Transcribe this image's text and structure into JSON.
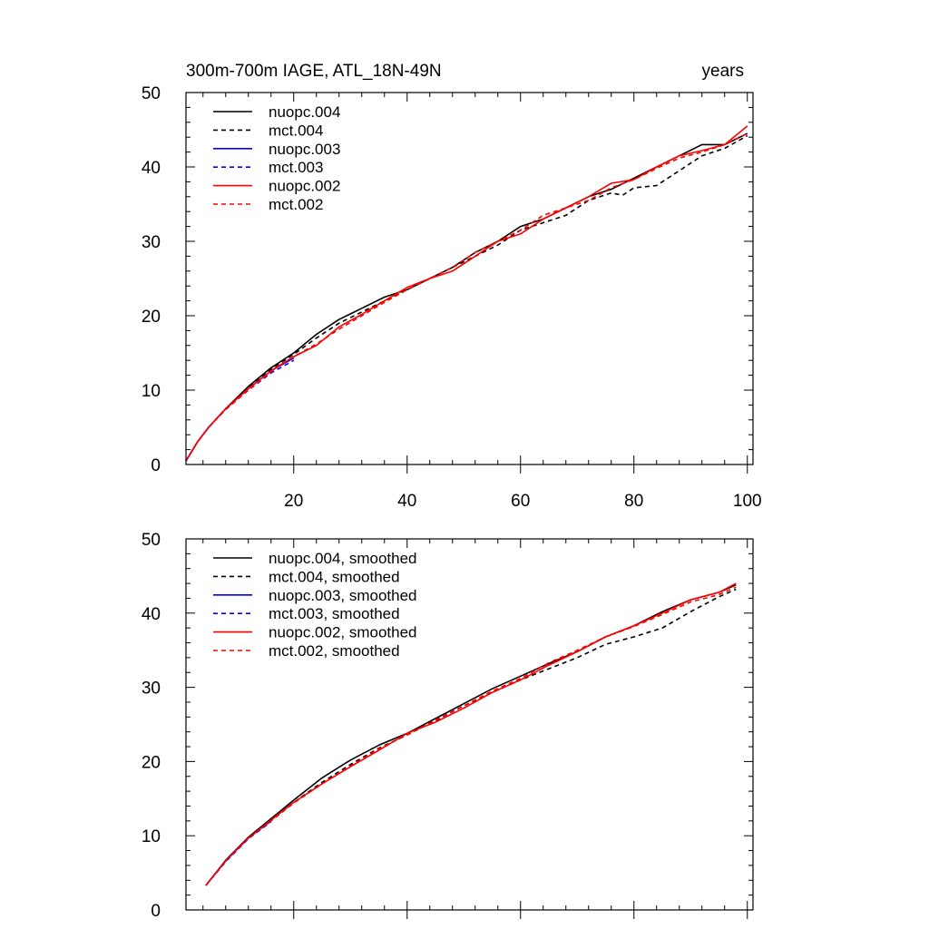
{
  "chart_data": [
    {
      "type": "line",
      "title_left": "300m-700m IAGE, ATL_18N-49N",
      "title_right": "years",
      "xlim": [
        1,
        101
      ],
      "ylim": [
        0,
        50
      ],
      "x_ticks": [
        20,
        40,
        60,
        80,
        100
      ],
      "y_ticks": [
        0,
        10,
        20,
        30,
        40,
        50
      ],
      "legend_position": "top-left",
      "series": [
        {
          "name": "nuopc.004",
          "color": "#000000",
          "dash": "solid",
          "x": [
            1,
            3,
            5,
            8,
            12,
            16,
            20,
            24,
            28,
            32,
            36,
            40,
            44,
            48,
            52,
            56,
            60,
            64,
            68,
            72,
            76,
            80,
            84,
            88,
            92,
            96,
            100
          ],
          "y": [
            0.5,
            3,
            5,
            7.5,
            10.5,
            13,
            15,
            17.5,
            19.5,
            21,
            22.5,
            23.5,
            25,
            26.5,
            28.5,
            30,
            32,
            33,
            34.5,
            36,
            37,
            38.5,
            40,
            41.5,
            43,
            43,
            44.5
          ]
        },
        {
          "name": "mct.004",
          "color": "#000000",
          "dash": "dashed",
          "x": [
            1,
            3,
            5,
            8,
            12,
            16,
            20,
            24,
            28,
            32,
            36,
            40,
            44,
            48,
            52,
            56,
            60,
            64,
            68,
            72,
            76,
            78,
            80,
            84,
            88,
            92,
            96,
            100
          ],
          "y": [
            0.5,
            3,
            5,
            7.5,
            10.3,
            12.8,
            14.8,
            17,
            19,
            20.5,
            22,
            23.5,
            25,
            26.5,
            28,
            29.5,
            31.5,
            32.5,
            33.5,
            35.5,
            36.5,
            36.2,
            37.2,
            37.5,
            39.5,
            41.5,
            42.5,
            44.2
          ]
        },
        {
          "name": "nuopc.003",
          "color": "#0000ff",
          "dash": "solid",
          "x": [
            1,
            3,
            5,
            8,
            12,
            16,
            20
          ],
          "y": [
            0.5,
            3,
            5,
            7.5,
            10.2,
            12.6,
            14.3
          ]
        },
        {
          "name": "mct.003",
          "color": "#0000ff",
          "dash": "dashed",
          "x": [
            1,
            3,
            5,
            8,
            12,
            16,
            20
          ],
          "y": [
            0.5,
            3,
            5,
            7.4,
            10,
            12.3,
            14
          ]
        },
        {
          "name": "nuopc.002",
          "color": "#ff0000",
          "dash": "solid",
          "x": [
            1,
            3,
            5,
            8,
            12,
            16,
            20,
            24,
            28,
            32,
            36,
            40,
            44,
            48,
            52,
            56,
            60,
            64,
            68,
            72,
            76,
            80,
            84,
            88,
            92,
            96,
            100
          ],
          "y": [
            0.5,
            3,
            5,
            7.5,
            10.2,
            12.6,
            14.5,
            16,
            18.5,
            20.2,
            22,
            23.8,
            25,
            26,
            28,
            30,
            31,
            33,
            34.5,
            36,
            37.8,
            38.3,
            40,
            41.5,
            42.2,
            43,
            45.5
          ]
        },
        {
          "name": "mct.002",
          "color": "#ff0000",
          "dash": "dashed",
          "x": [
            1,
            3,
            5,
            8,
            12,
            16,
            20,
            24,
            28,
            32,
            36,
            40,
            44,
            48,
            52,
            56,
            60,
            64,
            68,
            72,
            76,
            80,
            84,
            88,
            92,
            96,
            100
          ],
          "y": [
            0.5,
            3,
            5,
            7.4,
            10,
            12.5,
            14.5,
            16.2,
            18.2,
            20,
            21.8,
            23.5,
            25,
            26.5,
            28.5,
            30,
            31.5,
            33.5,
            34.5,
            35.5,
            37.2,
            38.3,
            39.8,
            41.2,
            42,
            43,
            44.5
          ]
        }
      ]
    },
    {
      "type": "line",
      "xlim": [
        1,
        101
      ],
      "ylim": [
        0,
        50
      ],
      "x_ticks": [
        20,
        40,
        60,
        80,
        100
      ],
      "y_ticks": [
        0,
        10,
        20,
        30,
        40,
        50
      ],
      "legend_position": "top-left",
      "series": [
        {
          "name": "nuopc.004, smoothed",
          "color": "#000000",
          "dash": "solid",
          "x": [
            4.5,
            8,
            12,
            16,
            20,
            25,
            30,
            35,
            40,
            45,
            50,
            55,
            60,
            65,
            70,
            75,
            80,
            85,
            90,
            95,
            98
          ],
          "y": [
            3.3,
            6.7,
            9.8,
            12.3,
            14.8,
            17.8,
            20.2,
            22.2,
            23.8,
            25.8,
            27.8,
            29.8,
            31.5,
            33.2,
            34.8,
            36.8,
            38.3,
            40.2,
            41.8,
            42.8,
            43.8
          ]
        },
        {
          "name": "mct.004, smoothed",
          "color": "#000000",
          "dash": "dashed",
          "x": [
            4.5,
            8,
            12,
            16,
            20,
            25,
            30,
            35,
            40,
            45,
            50,
            55,
            60,
            65,
            70,
            75,
            80,
            85,
            90,
            95,
            98
          ],
          "y": [
            3.3,
            6.6,
            9.7,
            12.1,
            14.5,
            17.2,
            19.6,
            21.8,
            23.6,
            25.5,
            27.5,
            29.3,
            31,
            32.5,
            34,
            35.8,
            36.8,
            38,
            40.2,
            42.2,
            43.2
          ]
        },
        {
          "name": "nuopc.003, smoothed",
          "color": "#0000ff",
          "dash": "solid",
          "x": [
            4.5,
            8,
            12,
            16
          ],
          "y": [
            3.3,
            6.6,
            9.7,
            12
          ]
        },
        {
          "name": "mct.003, smoothed",
          "color": "#0000ff",
          "dash": "dashed",
          "x": [
            4.5,
            8,
            12,
            16
          ],
          "y": [
            3.3,
            6.5,
            9.6,
            11.9
          ]
        },
        {
          "name": "nuopc.002, smoothed",
          "color": "#ff0000",
          "dash": "solid",
          "x": [
            4.5,
            8,
            12,
            16,
            20,
            25,
            30,
            35,
            40,
            45,
            50,
            55,
            60,
            65,
            70,
            75,
            80,
            85,
            90,
            95,
            98
          ],
          "y": [
            3.3,
            6.6,
            9.7,
            12.1,
            14.5,
            17,
            19.3,
            21.5,
            23.8,
            25.3,
            27.2,
            29.3,
            31,
            33,
            34.8,
            36.8,
            38.3,
            40,
            41.8,
            42.8,
            44
          ]
        },
        {
          "name": "mct.002, smoothed",
          "color": "#ff0000",
          "dash": "dashed",
          "x": [
            4.5,
            8,
            12,
            16,
            20,
            25,
            30,
            35,
            40,
            45,
            50,
            55,
            60,
            65,
            70,
            75,
            80,
            85,
            90,
            95,
            98
          ],
          "y": [
            3.3,
            6.6,
            9.7,
            12,
            14.4,
            17,
            19.4,
            21.7,
            23.6,
            25.6,
            27.5,
            29.5,
            31.2,
            33.3,
            35,
            36.8,
            38.2,
            39.8,
            41.5,
            42.5,
            43.5
          ]
        }
      ]
    }
  ]
}
